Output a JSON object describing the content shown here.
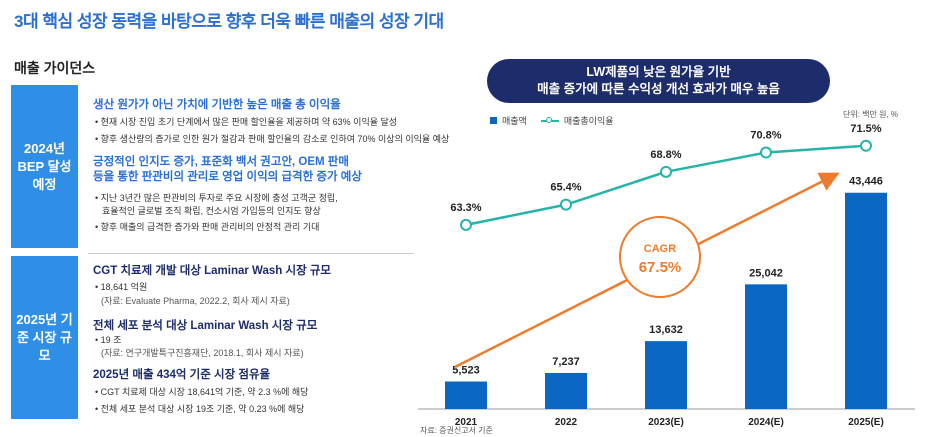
{
  "headline": "3대 핵심 성장 동력을 바탕으로 향후 더욱 빠른 매출의 성장 기대",
  "section_title": "매출 가이던스",
  "panel1": {
    "side_label": "2024년 BEP 달성 예정",
    "heading1": "생산 원가가 아닌 가치에 기반한 높은 매출 총 이익율",
    "bullets1": [
      "현재 시장 진입 초기 단계에서 많은 판매 할인율을 제공하며 약 63% 이익율 달성",
      "향후 생산량의 증가로 인한 원가 절감과 판매 할인율의 감소로 인하여 70% 이상의 이익율 예상"
    ],
    "heading2_line1": "긍정적인 인지도 증가, 표준화 백서 권고안, OEM 판매",
    "heading2_line2": "등을 통한 판관비의 관리로 영업 이익의 급격한 증가 예상",
    "bullet2a_line1": "지난 3년간 많은 판관비의 투자로 주요 시장에 충성 고객군 정립,",
    "bullet2a_line2": "효율적인 글로벌 조직 확립, 컨소시엄 가입등의 인지도 향상",
    "bullet2b": "향후 매출의 급격한 증가와 판매 관리비의 안정적 관리 기대"
  },
  "panel2": {
    "side_label": "2025년 기준 시장 규모",
    "heading1": "CGT 치료제 개발 대상 Laminar Wash 시장 규모",
    "bullet1": "18,641 억원",
    "source1": "(자료: Evaluate Pharma, 2022.2, 회사 제시 자료)",
    "heading2": "전체 세포 분석  대상 Laminar Wash 시장 규모",
    "bullet2": "19 조",
    "source2": "(자료: 연구개발특구진흥재단, 2018.1, 회사 제시 자료)",
    "heading3": "2025년 매출 434억 기준 시장 점유율",
    "bullets3": [
      "CGT 치료제 대상 시장 18,641억 기준, 약 2.3 %에 해당",
      "전체 세포 분석 대상 시장 19조 기준, 약 0.23 %에 해당"
    ]
  },
  "banner_line1": "LW제품의 낮은 원가율 기반",
  "banner_line2": "매출 증가에 따른 수익성 개선 효과가 매우 높음",
  "source_note": "자료: 증권신고서 기준",
  "colors": {
    "bar": "#0b66c3",
    "line": "#26b3a8",
    "cagr": "#ee7b2b",
    "navy": "#1d2c6b",
    "accent": "#2a6fd6"
  },
  "chart_data": {
    "type": "bar",
    "title": "",
    "unit_label": "단위: 백만 원, %",
    "categories": [
      "2021",
      "2022",
      "2023(E)",
      "2024(E)",
      "2025(E)"
    ],
    "series": [
      {
        "name": "매출액",
        "kind": "bar",
        "values": [
          5523,
          7237,
          13632,
          25042,
          43446
        ],
        "labels": [
          "5,523",
          "7,237",
          "13,632",
          "25,042",
          "43,446"
        ]
      },
      {
        "name": "매출총이익율",
        "kind": "line",
        "values": [
          63.3,
          65.4,
          68.8,
          70.8,
          71.5
        ],
        "labels": [
          "63.3%",
          "65.4%",
          "68.8%",
          "70.8%",
          "71.5%"
        ]
      }
    ],
    "annotation": {
      "label": "CAGR",
      "value": "67.5%"
    },
    "ylim_bar": [
      0,
      45000
    ],
    "ylim_line": [
      55,
      75
    ]
  }
}
